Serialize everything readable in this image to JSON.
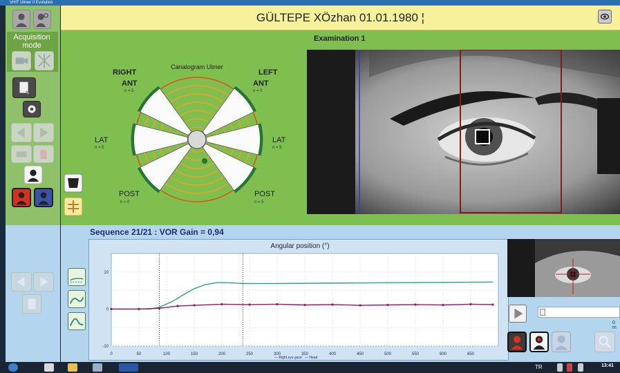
{
  "window": {
    "title": "VHIT Ulmer II Evolution"
  },
  "header": {
    "patient": "GÜLTEPE XÖzhan  01.01.1980  ¦",
    "icon": "eye-camera-icon"
  },
  "sidebar": {
    "acquisition_label": "Acquisition mode",
    "icons": [
      "patients-icon",
      "patient-search-icon",
      "camera-icon",
      "calibration-icon",
      "report-icon",
      "settings-icon",
      "previous-icon",
      "next-icon",
      "print-icon",
      "delete-icon",
      "examiner-icon",
      "red-user-icon",
      "blue-user-icon",
      "prev-sequence-icon",
      "next-sequence-icon",
      "document-icon"
    ]
  },
  "canalogram": {
    "title": "Canalogram Ulmer",
    "right_label": "RIGHT",
    "left_label": "LEFT",
    "ant_left": "ANT",
    "ant_left_n": "n = 5",
    "ant_right": "ANT",
    "ant_right_n": "n = 0",
    "lat_left": "LAT",
    "lat_left_n": "n = 5",
    "lat_right": "LAT",
    "lat_right_n": "n = 5",
    "post_left": "POST",
    "post_left_n": "n = 0",
    "post_right": "POST",
    "post_right_n": "n = 5"
  },
  "examination": {
    "title": "Examination 1"
  },
  "sequence": {
    "title": "Sequence 21/21 : VOR Gain = 0,94"
  },
  "chart_data": {
    "type": "line",
    "title": "Angular position (°)",
    "xlim": [
      0,
      700
    ],
    "ylim": [
      -10,
      15
    ],
    "x_ticks": [
      "0",
      "50",
      "100",
      "150",
      "200",
      "250",
      "300",
      "350",
      "400",
      "450",
      "500",
      "550",
      "600",
      "650"
    ],
    "y_ticks": [
      "10",
      "0",
      "-10"
    ],
    "markers_x": [
      87,
      238
    ],
    "legend": [
      "— Right eye gaze",
      "— Head"
    ],
    "series": [
      {
        "name": "Head",
        "color": "#2f9e86",
        "x": [
          0,
          70,
          87,
          110,
          130,
          150,
          170,
          190,
          210,
          238,
          300,
          400,
          500,
          600,
          690
        ],
        "y": [
          0,
          0,
          0.5,
          2,
          3.8,
          5.5,
          6.6,
          7.1,
          7.1,
          6.9,
          6.9,
          7.0,
          7.1,
          7.2,
          7.3
        ]
      },
      {
        "name": "Right eye gaze",
        "color": "#8a1a6e",
        "x": [
          0,
          50,
          87,
          120,
          150,
          200,
          250,
          300,
          350,
          400,
          450,
          500,
          550,
          600,
          650,
          690
        ],
        "y": [
          0,
          0,
          0.2,
          0.8,
          1.0,
          1.3,
          1.2,
          1.3,
          1.1,
          1.2,
          1.0,
          1.1,
          1.2,
          1.1,
          1.3,
          1.2
        ]
      }
    ]
  },
  "player": {
    "time_label": "0 m"
  },
  "taskbar": {
    "language": "TR",
    "time": "13:41"
  }
}
